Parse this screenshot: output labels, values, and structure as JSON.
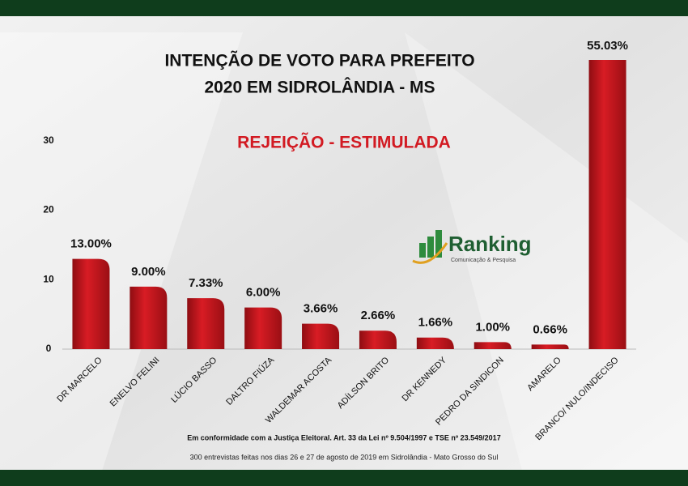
{
  "chart_data": {
    "type": "bar",
    "title": [
      "INTENÇÃO DE VOTO PARA PREFEITO",
      "2020 EM SIDROLÂNDIA - MS"
    ],
    "subtitle": "REJEIÇÃO - ESTIMULADA",
    "logo": {
      "name": "Ranking",
      "tagline": "Comunicação & Pesquisa"
    },
    "categories": [
      "DR MARCELO",
      "ENELVO FELINI",
      "LÚCIO BASSO",
      "DALTRO FIÚZA",
      "WALDEMAR ACOSTA",
      "ADÍLSON BRITO",
      "DR KENNEDY",
      "PEDRO DA SINDICON",
      "AMARELO",
      "BRANCO/ NULO/INDECISO"
    ],
    "values": [
      13.0,
      9.0,
      7.33,
      6.0,
      3.66,
      2.66,
      1.66,
      1.0,
      0.66,
      55.03
    ],
    "value_labels": [
      "13.00%",
      "9.00%",
      "7.33%",
      "6.00%",
      "3.66%",
      "2.66%",
      "1.66%",
      "1.00%",
      "0.66%",
      "55.03%"
    ],
    "color": "#c4141c",
    "ylim": [
      0,
      42
    ],
    "yticks": [
      0,
      10,
      20,
      30
    ],
    "footnote": "Em conformidade com a Justiça Eleitoral. Art. 33 da Lei nº 9.504/1997 e TSE nº 23.549/2017",
    "source": "300 entrevistas feitas nos dias 26 e 27 de agosto de 2019 em Sidrolândia - Mato Grosso do Sul"
  }
}
